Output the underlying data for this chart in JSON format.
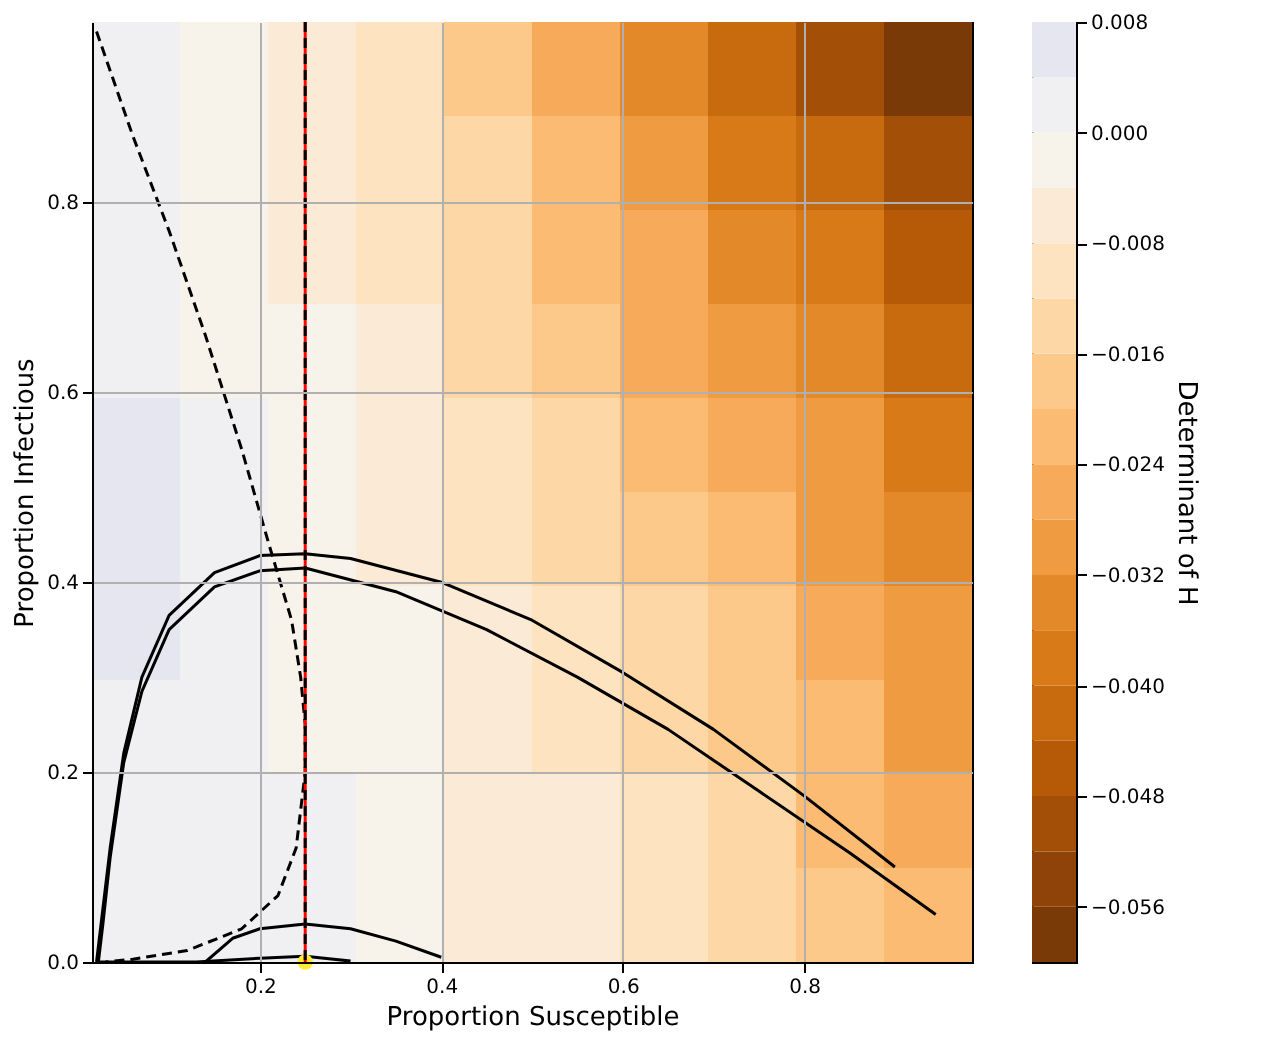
{
  "chart_data": [
    {
      "type": "heatmap",
      "clabel": "Determinant of H",
      "categories": [
        null,
        null,
        null,
        null,
        null,
        null,
        null,
        null,
        null,
        null
      ],
      "y_categories": [
        null,
        null,
        null,
        null,
        null,
        null,
        null,
        null,
        null,
        null
      ],
      "clim": [
        -0.06,
        0.008
      ],
      "cticks": [
        {
          "value": 0.008,
          "label": "0.008"
        },
        {
          "value": 0,
          "label": "0.000"
        },
        {
          "value": -0.008,
          "label": "−0.008"
        },
        {
          "value": -0.016,
          "label": "−0.016"
        },
        {
          "value": -0.024,
          "label": "−0.024"
        },
        {
          "value": -0.032,
          "label": "−0.032"
        },
        {
          "value": -0.04,
          "label": "−0.040"
        },
        {
          "value": -0.048,
          "label": "−0.048"
        },
        {
          "value": -0.056,
          "label": "−0.056"
        }
      ],
      "colors": [
        "#7a3a08",
        "#8f4308",
        "#a34f07",
        "#b65a08",
        "#c86a0e",
        "#d87a18",
        "#e3892a",
        "#ee9b42",
        "#f7ab5a",
        "#fbbb72",
        "#fdc98a",
        "#fdd8a6",
        "#fde3c0",
        "#fbebd6",
        "#f7f2ea",
        "#f0f0f2",
        "#e6e6f0"
      ],
      "cells": [
        [
          0.002,
          -0.002,
          -0.006,
          -0.011,
          -0.018,
          -0.026,
          -0.034,
          -0.042,
          -0.05,
          -0.057
        ],
        [
          0.002,
          -0.002,
          -0.005,
          -0.01,
          -0.016,
          -0.023,
          -0.03,
          -0.037,
          -0.044,
          -0.05
        ],
        [
          0.003,
          -0.001,
          -0.004,
          -0.009,
          -0.015,
          -0.021,
          -0.027,
          -0.033,
          -0.039,
          -0.045
        ],
        [
          0.004,
          -0.001,
          -0.003,
          -0.007,
          -0.012,
          -0.018,
          -0.024,
          -0.03,
          -0.035,
          -0.041
        ],
        [
          0.005,
          0.0,
          -0.003,
          -0.006,
          -0.01,
          -0.015,
          -0.02,
          -0.026,
          -0.032,
          -0.038
        ],
        [
          0.005,
          0.001,
          -0.002,
          -0.004,
          -0.008,
          -0.012,
          -0.017,
          -0.022,
          -0.028,
          -0.035
        ],
        [
          0.005,
          0.002,
          -0.001,
          -0.003,
          -0.006,
          -0.01,
          -0.014,
          -0.019,
          -0.025,
          -0.031
        ],
        [
          0.004,
          0.001,
          -0.001,
          -0.002,
          -0.005,
          -0.008,
          -0.012,
          -0.017,
          -0.022,
          -0.028
        ],
        [
          0.003,
          0.001,
          0.0,
          -0.002,
          -0.004,
          -0.007,
          -0.01,
          -0.015,
          -0.02,
          -0.025
        ],
        [
          0.002,
          0.001,
          0.0,
          -0.002,
          -0.004,
          -0.006,
          -0.009,
          -0.012,
          -0.017,
          -0.022
        ]
      ]
    },
    {
      "type": "line",
      "xlabel": "Proportion Susceptible",
      "ylabel": "Proportion Infectious",
      "xlim": [
        0.015,
        0.985
      ],
      "ylim": [
        0,
        0.99
      ],
      "xticks": [
        0.2,
        0.4,
        0.6,
        0.8
      ],
      "yticks": [
        {
          "value": 0,
          "label": "0.0"
        },
        0.2,
        0.4,
        0.6,
        0.8
      ],
      "grid": true,
      "ref_lines": [
        {
          "axis": "x",
          "value": 0.25,
          "color": "#ff0000",
          "line_style": "solid"
        },
        {
          "axis": "x",
          "value": 0.25,
          "color": "#000000",
          "line_style": "dashed"
        }
      ],
      "series": [
        {
          "color": "#000000",
          "line_style": "solid",
          "x": [
            0.9,
            0.8,
            0.7,
            0.6,
            0.5,
            0.4,
            0.3,
            0.25,
            0.2,
            0.15,
            0.1,
            0.07,
            0.05,
            0.035,
            0.025,
            0.02
          ],
          "values": [
            0.1,
            0.175,
            0.245,
            0.305,
            0.36,
            0.4,
            0.425,
            0.43,
            0.428,
            0.41,
            0.365,
            0.3,
            0.22,
            0.12,
            0.04,
            0.0
          ]
        },
        {
          "color": "#000000",
          "line_style": "solid",
          "x": [
            0.945,
            0.85,
            0.75,
            0.65,
            0.55,
            0.45,
            0.35,
            0.25,
            0.2,
            0.15,
            0.1,
            0.07,
            0.05,
            0.035,
            0.027,
            0.022
          ],
          "values": [
            0.05,
            0.115,
            0.18,
            0.245,
            0.3,
            0.35,
            0.39,
            0.415,
            0.412,
            0.395,
            0.35,
            0.285,
            0.21,
            0.11,
            0.04,
            0.0
          ]
        },
        {
          "color": "#000000",
          "line_style": "solid",
          "x": [
            0.4,
            0.35,
            0.3,
            0.25,
            0.2,
            0.17,
            0.14
          ],
          "values": [
            0.005,
            0.022,
            0.035,
            0.04,
            0.035,
            0.025,
            0.0
          ]
        },
        {
          "color": "#000000",
          "line_style": "solid",
          "x": [
            0.02,
            0.13,
            0.2,
            0.25,
            0.3
          ],
          "values": [
            0.0,
            0.0,
            0.004,
            0.006,
            0.001
          ]
        },
        {
          "color": "#000000",
          "line_style": "dashed",
          "x": [
            0.02,
            0.06,
            0.1,
            0.14,
            0.18,
            0.21,
            0.235,
            0.245,
            0.25,
            0.25,
            0.24,
            0.22,
            0.18,
            0.12,
            0.06,
            0.03
          ],
          "values": [
            0.98,
            0.87,
            0.77,
            0.66,
            0.54,
            0.44,
            0.36,
            0.3,
            0.25,
            0.2,
            0.12,
            0.07,
            0.035,
            0.012,
            0.003,
            0.0
          ]
        },
        {
          "type": "scatter",
          "color": "#ffee33",
          "marker": "circle",
          "x": [
            0.25
          ],
          "values": [
            0.0
          ]
        }
      ]
    }
  ]
}
